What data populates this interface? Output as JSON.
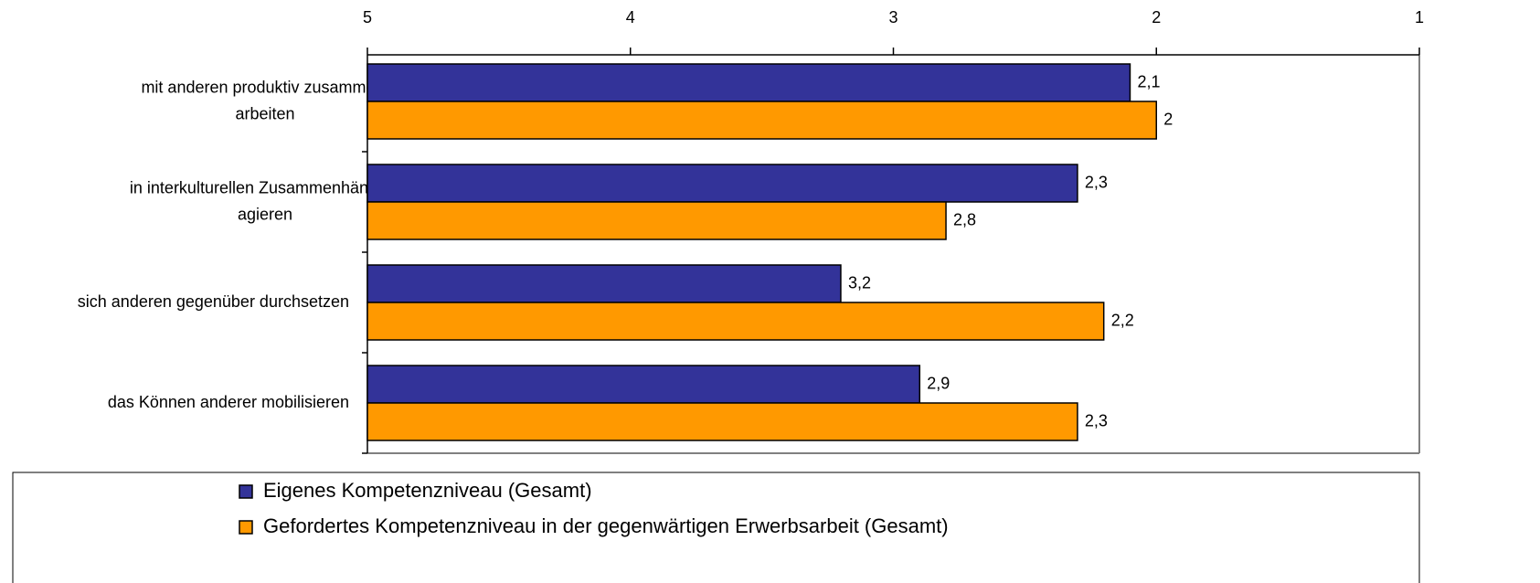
{
  "chart_data": {
    "type": "bar",
    "orientation": "horizontal",
    "categories": [
      "mit anderen produktiv zusammen arbeiten",
      "in interkulturellen Zusammenhängen agieren",
      "sich anderen gegenüber durchsetzen",
      "das Können anderer mobilisieren"
    ],
    "series": [
      {
        "name": "Eigenes Kompetenzniveau (Gesamt)",
        "color": "#333399",
        "values": [
          2.1,
          2.3,
          3.2,
          2.9
        ],
        "value_labels": [
          "2,1",
          "2,3",
          "3,2",
          "2,9"
        ]
      },
      {
        "name": "Gefordertes Kompetenzniveau in der gegenwärtigen Erwerbsarbeit (Gesamt)",
        "color": "#ff9900",
        "values": [
          2,
          2.8,
          2.2,
          2.3
        ],
        "value_labels": [
          "2",
          "2,8",
          "2,2",
          "2,3"
        ]
      }
    ],
    "xlim": [
      5,
      1
    ],
    "xticks": [
      5,
      4,
      3,
      2,
      1
    ],
    "legend": "bottom"
  }
}
